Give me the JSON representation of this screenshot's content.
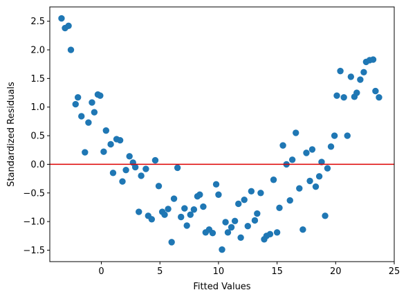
{
  "colors": {
    "points": "#1f77b4",
    "reference_line": "#dd0000",
    "axes": "#000000",
    "background": "#ffffff"
  },
  "chart_data": {
    "type": "scatter",
    "title": "",
    "xlabel": "Fitted Values",
    "ylabel": "Standardized Residuals",
    "xlim": [
      -4.4,
      25.0
    ],
    "ylim": [
      -1.7,
      2.75
    ],
    "xticks": [
      0,
      5,
      10,
      15,
      20,
      25
    ],
    "yticks": [
      -1.5,
      -1.0,
      -0.5,
      0.0,
      0.5,
      1.0,
      1.5,
      2.0,
      2.5
    ],
    "grid": false,
    "legend": "none",
    "reference_line": {
      "orientation": "horizontal",
      "y": 0.0
    },
    "points": [
      [
        -3.4,
        2.55
      ],
      [
        -3.1,
        2.38
      ],
      [
        -2.8,
        2.42
      ],
      [
        -2.6,
        2.0
      ],
      [
        -2.2,
        1.05
      ],
      [
        -2.0,
        1.17
      ],
      [
        -1.7,
        0.84
      ],
      [
        -1.4,
        0.21
      ],
      [
        -1.1,
        0.73
      ],
      [
        -0.8,
        1.08
      ],
      [
        -0.6,
        0.91
      ],
      [
        -0.3,
        1.22
      ],
      [
        -0.1,
        1.2
      ],
      [
        0.2,
        0.22
      ],
      [
        0.4,
        0.59
      ],
      [
        0.8,
        0.35
      ],
      [
        1.0,
        -0.15
      ],
      [
        1.3,
        0.44
      ],
      [
        1.6,
        0.42
      ],
      [
        1.8,
        -0.3
      ],
      [
        2.1,
        -0.1
      ],
      [
        2.4,
        0.14
      ],
      [
        2.7,
        0.03
      ],
      [
        2.9,
        -0.05
      ],
      [
        3.2,
        -0.83
      ],
      [
        3.4,
        -0.2
      ],
      [
        3.8,
        -0.08
      ],
      [
        4.0,
        -0.9
      ],
      [
        4.3,
        -0.96
      ],
      [
        4.6,
        0.07
      ],
      [
        4.9,
        -0.38
      ],
      [
        5.2,
        -0.83
      ],
      [
        5.4,
        -0.88
      ],
      [
        5.7,
        -0.78
      ],
      [
        6.0,
        -1.36
      ],
      [
        6.2,
        -0.6
      ],
      [
        6.5,
        -0.06
      ],
      [
        6.8,
        -0.92
      ],
      [
        7.1,
        -0.77
      ],
      [
        7.3,
        -1.07
      ],
      [
        7.6,
        -0.88
      ],
      [
        7.9,
        -0.79
      ],
      [
        8.2,
        -0.56
      ],
      [
        8.4,
        -0.53
      ],
      [
        8.7,
        -0.74
      ],
      [
        8.9,
        -1.19
      ],
      [
        9.2,
        -1.14
      ],
      [
        9.5,
        -1.2
      ],
      [
        9.8,
        -0.35
      ],
      [
        10.0,
        -0.53
      ],
      [
        10.3,
        -1.49
      ],
      [
        10.6,
        -1.01
      ],
      [
        10.8,
        -1.19
      ],
      [
        11.1,
        -1.1
      ],
      [
        11.4,
        -0.99
      ],
      [
        11.7,
        -0.69
      ],
      [
        11.9,
        -1.28
      ],
      [
        12.2,
        -0.62
      ],
      [
        12.5,
        -1.08
      ],
      [
        12.8,
        -0.47
      ],
      [
        13.1,
        -0.98
      ],
      [
        13.3,
        -0.86
      ],
      [
        13.6,
        -0.5
      ],
      [
        13.9,
        -1.31
      ],
      [
        14.1,
        -1.25
      ],
      [
        14.4,
        -1.22
      ],
      [
        14.7,
        -0.27
      ],
      [
        15.0,
        -1.19
      ],
      [
        15.2,
        -0.76
      ],
      [
        15.5,
        0.33
      ],
      [
        15.8,
        0.0
      ],
      [
        16.1,
        -0.63
      ],
      [
        16.3,
        0.08
      ],
      [
        16.6,
        0.55
      ],
      [
        16.9,
        -0.42
      ],
      [
        17.2,
        -1.14
      ],
      [
        17.5,
        0.2
      ],
      [
        17.8,
        -0.29
      ],
      [
        18.0,
        0.26
      ],
      [
        18.3,
        -0.39
      ],
      [
        18.6,
        -0.21
      ],
      [
        18.8,
        0.04
      ],
      [
        19.1,
        -0.9
      ],
      [
        19.3,
        -0.07
      ],
      [
        19.6,
        0.31
      ],
      [
        19.9,
        0.5
      ],
      [
        20.1,
        1.2
      ],
      [
        20.4,
        1.63
      ],
      [
        20.7,
        1.17
      ],
      [
        21.0,
        0.5
      ],
      [
        21.3,
        1.53
      ],
      [
        21.6,
        1.18
      ],
      [
        21.8,
        1.25
      ],
      [
        22.1,
        1.48
      ],
      [
        22.4,
        1.61
      ],
      [
        22.6,
        1.79
      ],
      [
        22.9,
        1.82
      ],
      [
        23.2,
        1.83
      ],
      [
        23.4,
        1.28
      ],
      [
        23.7,
        1.17
      ]
    ]
  }
}
